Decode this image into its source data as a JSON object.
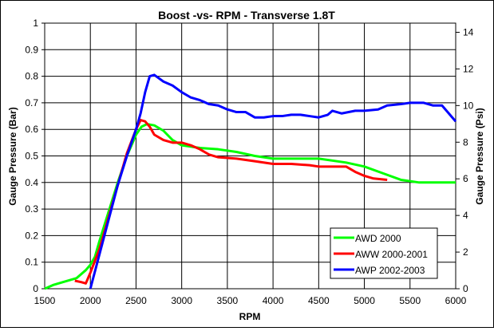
{
  "chart_data": {
    "type": "line",
    "title": "Boost -vs- RPM - Transverse 1.8T",
    "xlabel": "RPM",
    "ylabel": "Gauge Pressure (Bar)",
    "y2label": "Gauge Pressure (Psi)",
    "xlim": [
      1500,
      6000
    ],
    "ylim": [
      0,
      1
    ],
    "y2lim": [
      0,
      14.5
    ],
    "xticks": [
      "1500",
      "2000",
      "2500",
      "3000",
      "3500",
      "4000",
      "4500",
      "5000",
      "5500",
      "6000"
    ],
    "yticks": [
      "0",
      "0.1",
      "0.2",
      "0.3",
      "0.4",
      "0.5",
      "0.6",
      "0.7",
      "0.8",
      "0.9",
      "1"
    ],
    "y2ticks": [
      "0",
      "2",
      "4",
      "6",
      "8",
      "10",
      "12",
      "14"
    ],
    "grid": true,
    "legend_position": "bottom-right",
    "series": [
      {
        "name": "AWD 2000",
        "color": "#00FF00",
        "points": [
          [
            1500,
            0
          ],
          [
            1600,
            0.015
          ],
          [
            1700,
            0.025
          ],
          [
            1850,
            0.04
          ],
          [
            1950,
            0.07
          ],
          [
            2000,
            0.09
          ],
          [
            2050,
            0.12
          ],
          [
            2100,
            0.18
          ],
          [
            2200,
            0.29
          ],
          [
            2300,
            0.4
          ],
          [
            2400,
            0.5
          ],
          [
            2500,
            0.58
          ],
          [
            2560,
            0.61
          ],
          [
            2620,
            0.62
          ],
          [
            2700,
            0.615
          ],
          [
            2800,
            0.595
          ],
          [
            2900,
            0.56
          ],
          [
            3000,
            0.54
          ],
          [
            3200,
            0.53
          ],
          [
            3400,
            0.525
          ],
          [
            3600,
            0.515
          ],
          [
            3800,
            0.5
          ],
          [
            4000,
            0.49
          ],
          [
            4500,
            0.49
          ],
          [
            4800,
            0.475
          ],
          [
            5000,
            0.46
          ],
          [
            5200,
            0.435
          ],
          [
            5400,
            0.41
          ],
          [
            5600,
            0.4
          ],
          [
            5800,
            0.4
          ],
          [
            6000,
            0.4
          ]
        ]
      },
      {
        "name": "AWW 2000-2001",
        "color": "#FF0000",
        "points": [
          [
            1830,
            0.03
          ],
          [
            1900,
            0.025
          ],
          [
            1950,
            0.02
          ],
          [
            2000,
            0.06
          ],
          [
            2100,
            0.15
          ],
          [
            2200,
            0.27
          ],
          [
            2300,
            0.39
          ],
          [
            2400,
            0.51
          ],
          [
            2500,
            0.6
          ],
          [
            2550,
            0.635
          ],
          [
            2600,
            0.63
          ],
          [
            2650,
            0.61
          ],
          [
            2700,
            0.58
          ],
          [
            2800,
            0.56
          ],
          [
            2900,
            0.55
          ],
          [
            3000,
            0.55
          ],
          [
            3100,
            0.54
          ],
          [
            3200,
            0.525
          ],
          [
            3300,
            0.505
          ],
          [
            3400,
            0.495
          ],
          [
            3600,
            0.49
          ],
          [
            3800,
            0.48
          ],
          [
            4000,
            0.47
          ],
          [
            4200,
            0.47
          ],
          [
            4400,
            0.465
          ],
          [
            4500,
            0.46
          ],
          [
            4700,
            0.46
          ],
          [
            4800,
            0.46
          ],
          [
            4900,
            0.44
          ],
          [
            5000,
            0.425
          ],
          [
            5100,
            0.415
          ],
          [
            5250,
            0.41
          ]
        ]
      },
      {
        "name": "AWP 2002-2003",
        "color": "#0000FF",
        "points": [
          [
            2000,
            0
          ],
          [
            2100,
            0.13
          ],
          [
            2200,
            0.26
          ],
          [
            2300,
            0.39
          ],
          [
            2400,
            0.5
          ],
          [
            2500,
            0.6
          ],
          [
            2550,
            0.66
          ],
          [
            2600,
            0.74
          ],
          [
            2650,
            0.8
          ],
          [
            2700,
            0.805
          ],
          [
            2800,
            0.78
          ],
          [
            2900,
            0.765
          ],
          [
            3000,
            0.74
          ],
          [
            3100,
            0.72
          ],
          [
            3200,
            0.71
          ],
          [
            3300,
            0.695
          ],
          [
            3400,
            0.69
          ],
          [
            3500,
            0.675
          ],
          [
            3600,
            0.665
          ],
          [
            3700,
            0.665
          ],
          [
            3800,
            0.645
          ],
          [
            3900,
            0.645
          ],
          [
            4000,
            0.65
          ],
          [
            4100,
            0.65
          ],
          [
            4200,
            0.655
          ],
          [
            4300,
            0.655
          ],
          [
            4400,
            0.65
          ],
          [
            4500,
            0.645
          ],
          [
            4600,
            0.655
          ],
          [
            4650,
            0.67
          ],
          [
            4750,
            0.66
          ],
          [
            4900,
            0.67
          ],
          [
            5000,
            0.67
          ],
          [
            5150,
            0.675
          ],
          [
            5250,
            0.69
          ],
          [
            5400,
            0.695
          ],
          [
            5500,
            0.7
          ],
          [
            5650,
            0.7
          ],
          [
            5750,
            0.69
          ],
          [
            5850,
            0.69
          ],
          [
            6000,
            0.63
          ]
        ]
      }
    ]
  }
}
